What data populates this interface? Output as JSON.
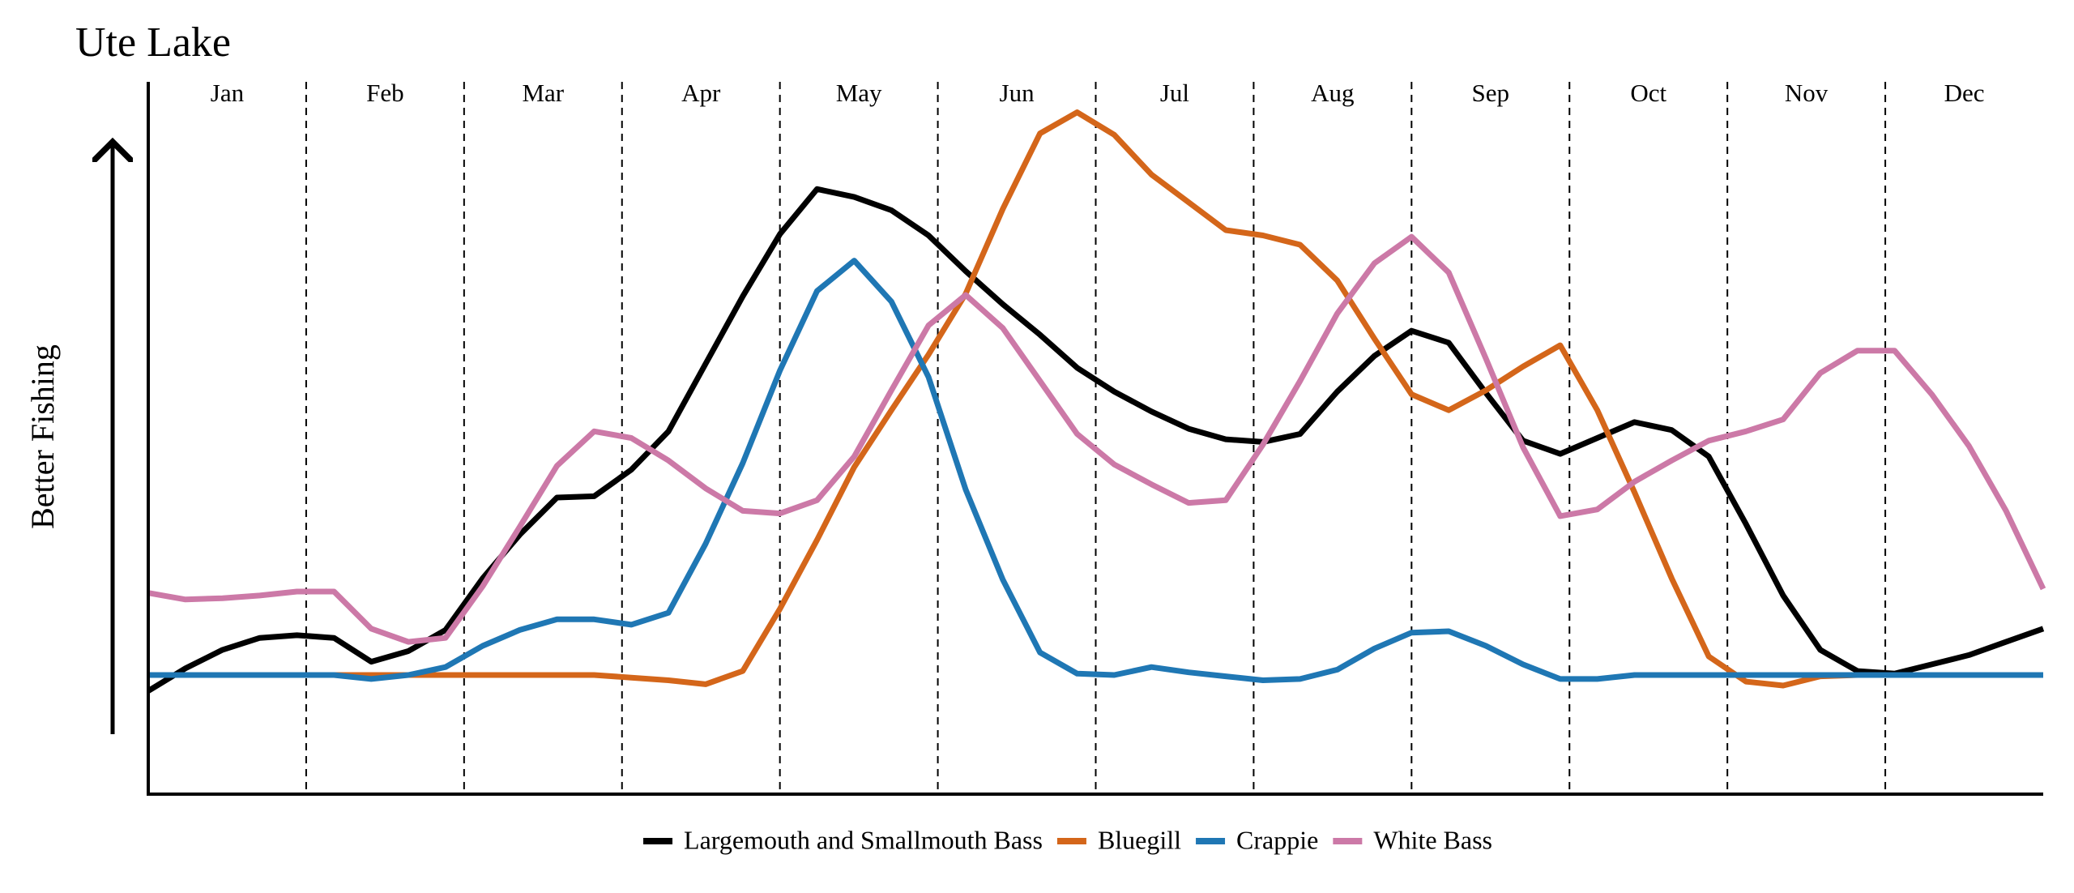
{
  "chart_data": {
    "type": "line",
    "title": "Ute Lake",
    "y_label": "Better Fishing",
    "months": [
      "Jan",
      "Feb",
      "Mar",
      "Apr",
      "May",
      "Jun",
      "Jul",
      "Aug",
      "Sep",
      "Oct",
      "Nov",
      "Dec"
    ],
    "ylim": [
      0,
      538
    ],
    "series": [
      {
        "name": "Largemouth and Smallmouth Bass",
        "color": "#000000",
        "values": [
          78,
          95,
          109,
          118,
          120,
          118,
          100,
          108,
          124,
          163,
          196,
          224,
          225,
          245,
          274,
          325,
          376,
          423,
          457,
          451,
          441,
          422,
          395,
          370,
          347,
          322,
          304,
          289,
          276,
          268,
          266,
          272,
          304,
          331,
          350,
          341,
          303,
          267,
          257,
          269,
          281,
          275,
          255,
          204,
          150,
          109,
          93,
          91,
          98,
          105,
          115,
          125
        ]
      },
      {
        "name": "Bluegill",
        "color": "#d4661a",
        "values": [
          90,
          90,
          90,
          90,
          90,
          90,
          90,
          90,
          90,
          90,
          90,
          90,
          90,
          88,
          86,
          83,
          93,
          140,
          192,
          247,
          290,
          332,
          378,
          442,
          499,
          515,
          498,
          468,
          447,
          426,
          422,
          415,
          388,
          344,
          302,
          290,
          305,
          323,
          339,
          290,
          228,
          163,
          104,
          85,
          82,
          89,
          90,
          90,
          90,
          90,
          90,
          90
        ]
      },
      {
        "name": "Crappie",
        "color": "#1f77b4",
        "values": [
          90,
          90,
          90,
          90,
          90,
          90,
          87,
          90,
          96,
          112,
          124,
          132,
          132,
          128,
          137,
          189,
          250,
          320,
          380,
          403,
          372,
          315,
          230,
          162,
          107,
          91,
          90,
          96,
          92,
          89,
          86,
          87,
          94,
          110,
          122,
          123,
          112,
          98,
          87,
          87,
          90,
          90,
          90,
          90,
          90,
          90,
          90,
          90,
          90,
          90,
          90,
          90
        ]
      },
      {
        "name": "White Bass",
        "color": "#cc79a7",
        "values": [
          152,
          147,
          148,
          150,
          153,
          153,
          125,
          115,
          118,
          157,
          202,
          248,
          274,
          269,
          252,
          231,
          214,
          212,
          222,
          255,
          305,
          354,
          377,
          352,
          312,
          272,
          249,
          234,
          220,
          222,
          264,
          312,
          363,
          401,
          421,
          394,
          329,
          262,
          210,
          215,
          236,
          252,
          267,
          274,
          283,
          318,
          335,
          335,
          302,
          263,
          214,
          155
        ]
      }
    ]
  }
}
